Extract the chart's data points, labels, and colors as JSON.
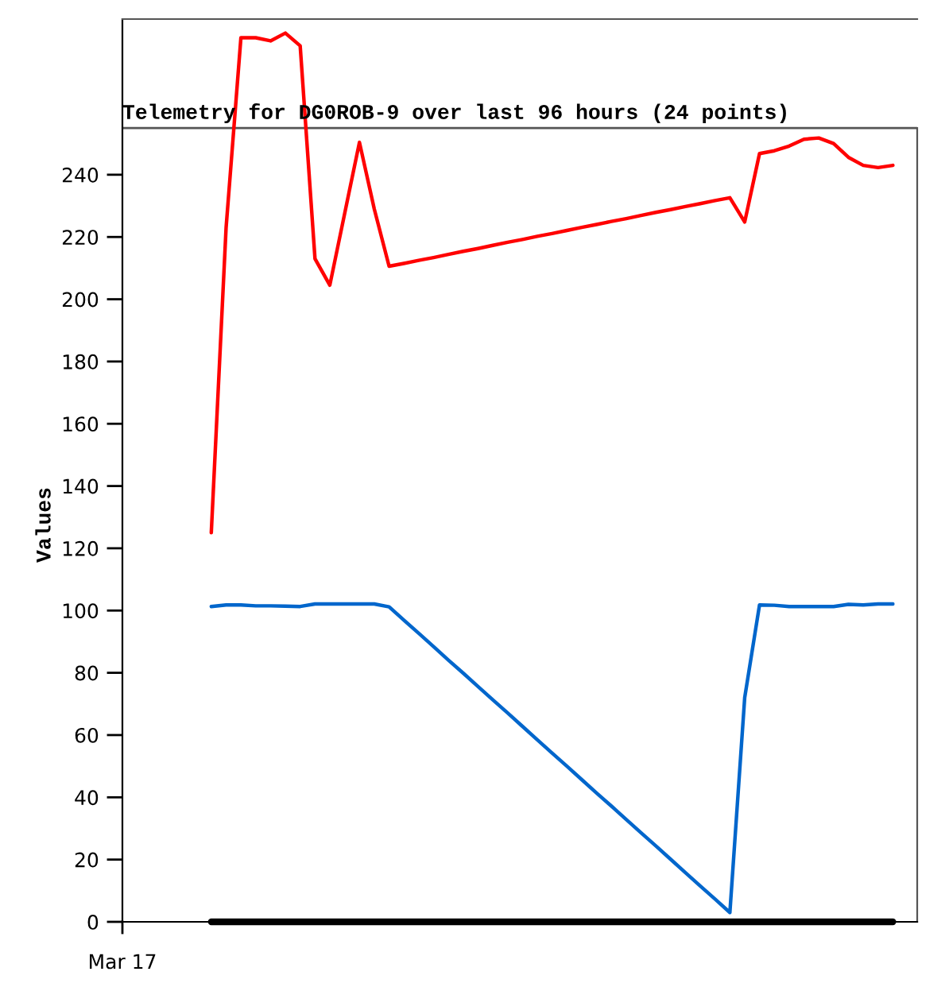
{
  "chart_data": {
    "type": "line",
    "title": "Telemetry for DG0ROB-9 over last 96 hours (24 points)",
    "ylabel": "Values",
    "annotations": [
      "Mar 17"
    ],
    "categories": [
      null,
      null,
      null,
      null,
      null,
      null,
      null,
      null,
      null,
      null,
      null,
      null,
      null,
      null,
      null,
      null,
      null,
      null,
      null,
      null,
      null,
      null,
      null,
      null,
      null,
      null,
      null,
      null,
      null,
      null,
      null,
      null,
      null,
      null,
      null,
      null,
      null,
      null,
      null,
      null,
      null,
      null,
      null,
      null,
      null,
      null,
      null
    ],
    "ylim": [
      0,
      290
    ],
    "yticks": [
      0,
      20,
      40,
      60,
      80,
      100,
      120,
      140,
      160,
      180,
      200,
      220,
      240
    ],
    "ref_lines": [
      {
        "axis": "y",
        "value": 255,
        "color": "#555555"
      }
    ],
    "grid": false,
    "legend": false,
    "marker": "none",
    "line_style": "solid",
    "series": [
      {
        "color": "#ff0000",
        "values": [
          125,
          223,
          284,
          284,
          283,
          285.5,
          281.4,
          213,
          204.5,
          227.5,
          250.4,
          229,
          210.6,
          211.5,
          212.5,
          213.4,
          214.4,
          215.4,
          216.3,
          217.3,
          218.3,
          219.2,
          220.2,
          221.1,
          222.1,
          223.1,
          224,
          225,
          225.9,
          226.9,
          227.9,
          228.8,
          229.8,
          230.7,
          231.7,
          232.6,
          224.8,
          246.8,
          247.7,
          249.2,
          251.4,
          251.8,
          250,
          245.6,
          243,
          242.3,
          243
        ]
      },
      {
        "color": "#0066cc",
        "values": [
          101.3,
          101.8,
          101.8,
          101.5,
          101.5,
          101.4,
          101.3,
          102.1,
          102.1,
          102.1,
          102.1,
          102.1,
          101.2,
          96.9,
          92.7,
          88.4,
          84.1,
          79.9,
          75.6,
          71.3,
          67.1,
          62.8,
          58.5,
          54.2,
          50,
          45.7,
          41.4,
          37.2,
          32.9,
          28.6,
          24.4,
          20.1,
          15.8,
          11.5,
          7.3,
          3,
          72,
          101.8,
          101.7,
          101.3,
          101.3,
          101.3,
          101.3,
          102,
          101.8,
          102.1,
          102.1
        ]
      },
      {
        "color": "#000000",
        "values": [
          0,
          0,
          0,
          0,
          0,
          0,
          0,
          0,
          0,
          0,
          0,
          0,
          0,
          0,
          0,
          0,
          0,
          0,
          0,
          0,
          0,
          0,
          0,
          0,
          0,
          0,
          0,
          0,
          0,
          0,
          0,
          0,
          0,
          0,
          0,
          0,
          0,
          0,
          0,
          0,
          0,
          0,
          0,
          0,
          0,
          0,
          0
        ]
      }
    ]
  }
}
